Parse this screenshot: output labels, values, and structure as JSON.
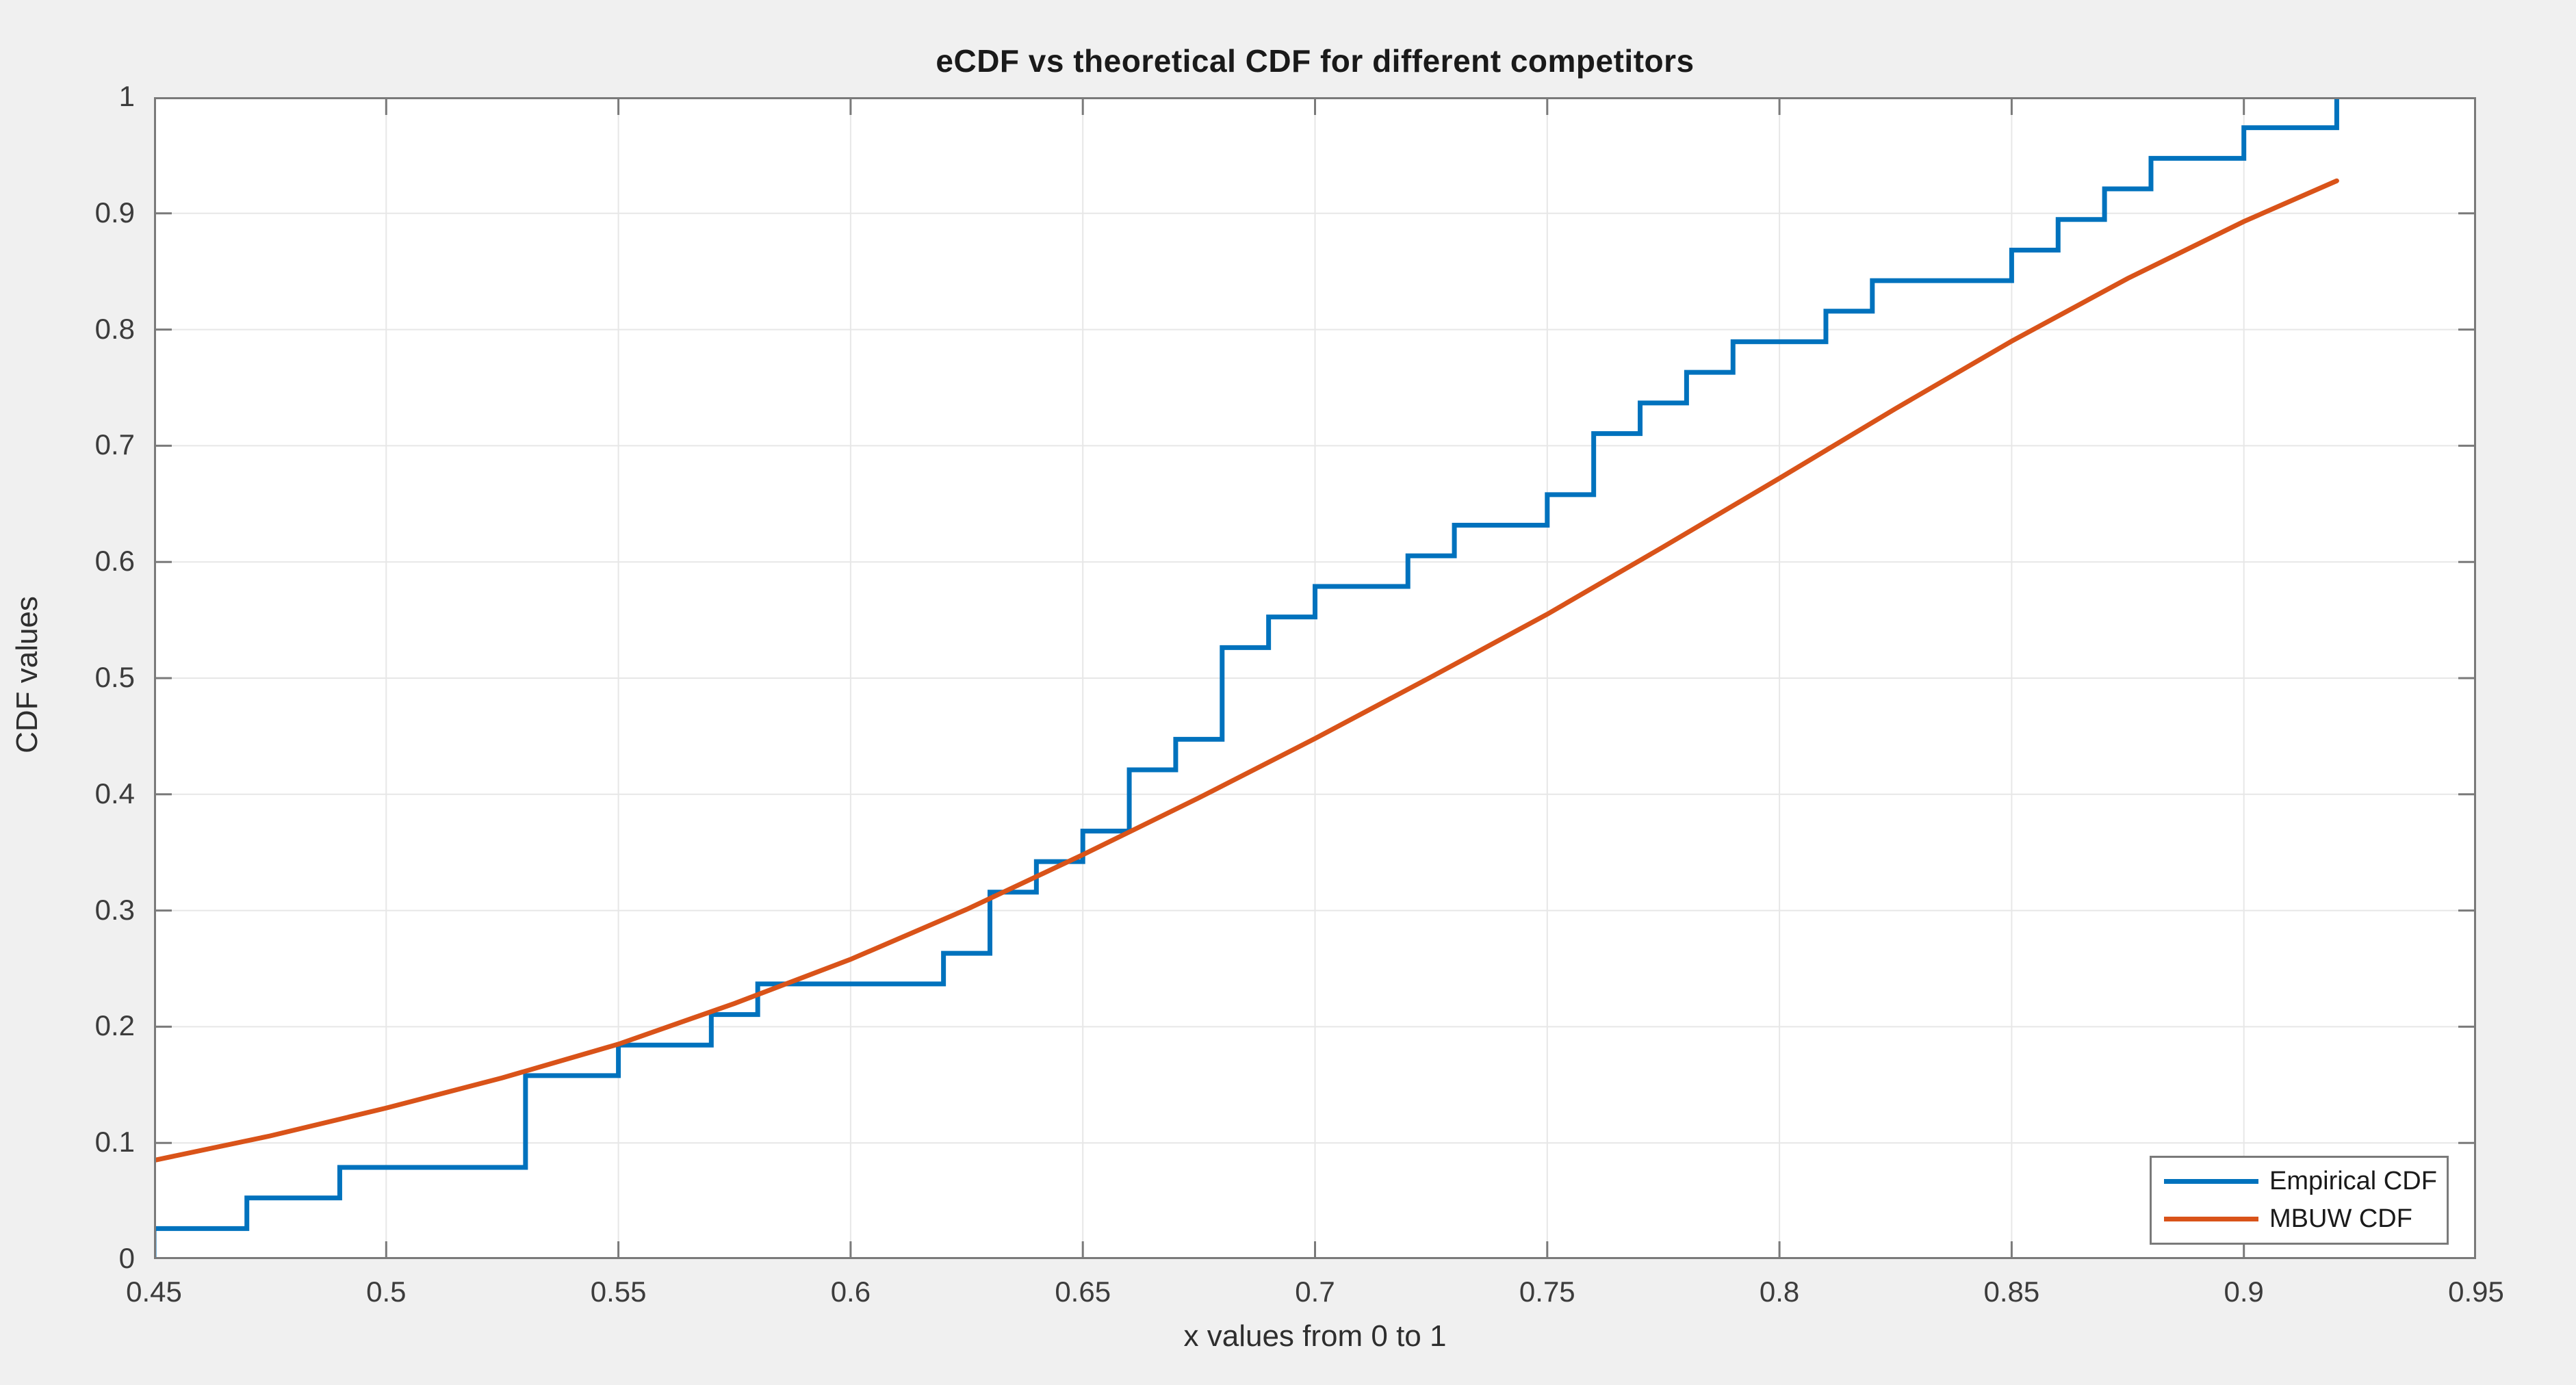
{
  "title": "eCDF vs theoretical CDF for different competitors",
  "xlabel": "x values from 0 to 1",
  "ylabel": "CDF values",
  "legend": [
    {
      "label": "Empirical CDF",
      "color": "#0072BD"
    },
    {
      "label": "MBUW CDF",
      "color": "#D95319"
    }
  ],
  "colors": {
    "background": "#F0F0F0",
    "plot_background": "#FFFFFF",
    "axis_box": "#7a7a7a",
    "grid": "#E7E7E7",
    "tick_text": "#3c3c3c",
    "empirical_blue": "#0072BD",
    "mbuw_orange": "#D95319"
  },
  "chart_data": {
    "type": "line",
    "title": "eCDF vs theoretical CDF for different competitors",
    "xlabel": "x values from 0 to 1",
    "ylabel": "CDF values",
    "xlim": [
      0.45,
      0.95
    ],
    "ylim": [
      0,
      1
    ],
    "xticks": [
      "0.45",
      "0.5",
      "0.55",
      "0.6",
      "0.65",
      "0.7",
      "0.75",
      "0.8",
      "0.85",
      "0.9",
      "0.95"
    ],
    "yticks": [
      "0",
      "0.1",
      "0.2",
      "0.3",
      "0.4",
      "0.5",
      "0.6",
      "0.7",
      "0.8",
      "0.9",
      "1"
    ],
    "grid": true,
    "legend_position": "southeast",
    "series": [
      {
        "name": "Empirical CDF",
        "style": "stairs",
        "color": "#0072BD",
        "n_samples": 38,
        "step_size": 0.0263,
        "x": [
          0.45,
          0.47,
          0.49,
          0.53,
          0.55,
          0.57,
          0.58,
          0.62,
          0.63,
          0.64,
          0.65,
          0.66,
          0.67,
          0.68,
          0.69,
          0.7,
          0.72,
          0.73,
          0.75,
          0.76,
          0.77,
          0.78,
          0.79,
          0.81,
          0.82,
          0.85,
          0.86,
          0.87,
          0.88,
          0.9,
          0.92
        ],
        "y": [
          0.0263,
          0.0526,
          0.0789,
          0.1579,
          0.1842,
          0.2105,
          0.2368,
          0.2632,
          0.3158,
          0.3421,
          0.3684,
          0.4211,
          0.4474,
          0.5263,
          0.5526,
          0.5789,
          0.6053,
          0.6316,
          0.6579,
          0.7105,
          0.7368,
          0.7632,
          0.7895,
          0.8158,
          0.8421,
          0.8684,
          0.8947,
          0.9211,
          0.9474,
          0.9737,
          1.0
        ]
      },
      {
        "name": "MBUW CDF",
        "style": "smooth",
        "color": "#D95319",
        "x": [
          0.45,
          0.475,
          0.5,
          0.525,
          0.55,
          0.575,
          0.6,
          0.625,
          0.65,
          0.675,
          0.7,
          0.725,
          0.75,
          0.775,
          0.8,
          0.825,
          0.85,
          0.875,
          0.9,
          0.92
        ],
        "y": [
          0.085,
          0.106,
          0.13,
          0.156,
          0.185,
          0.22,
          0.258,
          0.301,
          0.348,
          0.397,
          0.448,
          0.501,
          0.555,
          0.613,
          0.672,
          0.732,
          0.79,
          0.844,
          0.893,
          0.928
        ]
      }
    ]
  }
}
